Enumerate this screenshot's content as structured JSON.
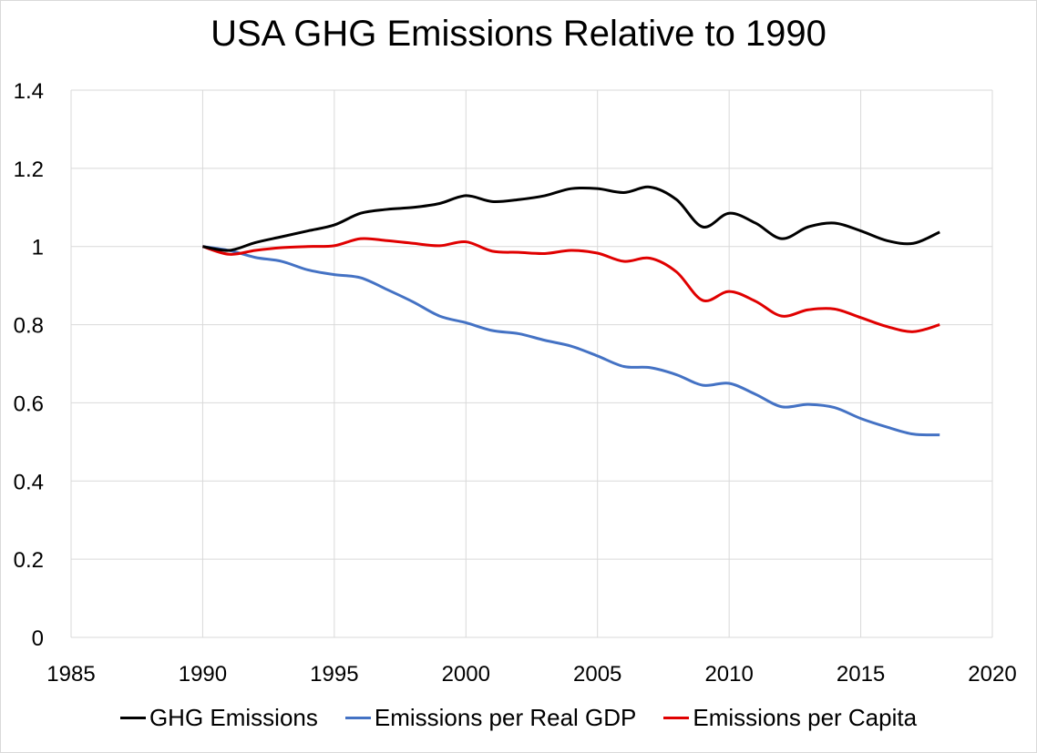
{
  "chart_data": {
    "type": "line",
    "title": "USA GHG Emissions Relative to 1990",
    "xlim": [
      1985,
      2020
    ],
    "ylim": [
      0,
      1.4
    ],
    "xticks": [
      "1985",
      "1990",
      "1995",
      "2000",
      "2005",
      "2010",
      "2015",
      "2020"
    ],
    "yticks": [
      "0",
      "0.2",
      "0.4",
      "0.6",
      "0.8",
      "1",
      "1.2",
      "1.4"
    ],
    "grid": true,
    "legend_position": "bottom",
    "x": [
      1990,
      1991,
      1992,
      1993,
      1994,
      1995,
      1996,
      1997,
      1998,
      1999,
      2000,
      2001,
      2002,
      2003,
      2004,
      2005,
      2006,
      2007,
      2008,
      2009,
      2010,
      2011,
      2012,
      2013,
      2014,
      2015,
      2016,
      2017,
      2018
    ],
    "series": [
      {
        "name": "GHG Emissions",
        "color": "#000000",
        "values": [
          1.0,
          0.99,
          1.01,
          1.025,
          1.04,
          1.055,
          1.085,
          1.095,
          1.1,
          1.11,
          1.13,
          1.115,
          1.12,
          1.13,
          1.148,
          1.148,
          1.138,
          1.152,
          1.12,
          1.05,
          1.085,
          1.06,
          1.02,
          1.05,
          1.06,
          1.04,
          1.015,
          1.008,
          1.037
        ]
      },
      {
        "name": "Emissions per Real GDP",
        "color": "#4472c4",
        "values": [
          1.0,
          0.99,
          0.972,
          0.962,
          0.94,
          0.928,
          0.92,
          0.89,
          0.858,
          0.822,
          0.805,
          0.785,
          0.777,
          0.76,
          0.745,
          0.72,
          0.693,
          0.69,
          0.672,
          0.645,
          0.65,
          0.622,
          0.59,
          0.596,
          0.588,
          0.56,
          0.538,
          0.52,
          0.518
        ]
      },
      {
        "name": "Emissions per Capita",
        "color": "#e00000",
        "values": [
          1.0,
          0.98,
          0.99,
          0.997,
          1.0,
          1.002,
          1.02,
          1.015,
          1.008,
          1.002,
          1.012,
          0.988,
          0.985,
          0.982,
          0.99,
          0.983,
          0.962,
          0.97,
          0.935,
          0.862,
          0.885,
          0.86,
          0.822,
          0.838,
          0.84,
          0.818,
          0.795,
          0.782,
          0.8
        ]
      }
    ]
  }
}
